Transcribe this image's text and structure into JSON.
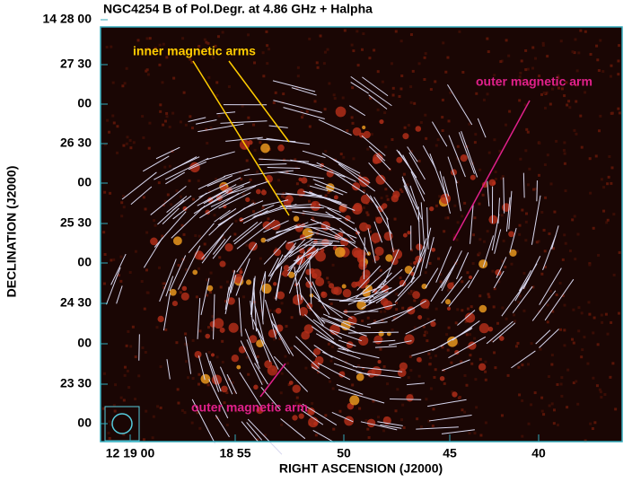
{
  "title": "NGC4254  B of Pol.Degr. at 4.86 GHz + Halpha",
  "x_axis": {
    "label": "RIGHT ASCENSION (J2000)",
    "ticks": [
      "12 19 00",
      "18 55",
      "50",
      "45",
      "40"
    ]
  },
  "y_axis": {
    "label": "DECLINATION (J2000)",
    "ticks": [
      "14 28 00",
      "27 30",
      "00",
      "26 30",
      "00",
      "25 30",
      "00",
      "24 30",
      "00",
      "23 30",
      "00"
    ]
  },
  "annotations": [
    "inner magnetic arms",
    "outer magnetic arm",
    "outer magnetic arm"
  ]
}
